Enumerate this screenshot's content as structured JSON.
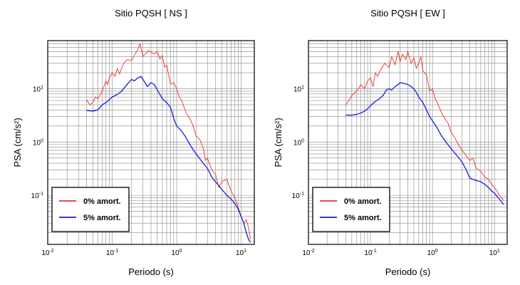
{
  "chart_data": [
    {
      "type": "line",
      "title": "Sitio PQSH [ NS ]",
      "xlabel": "Periodo (s)",
      "ylabel": "PSA (cm/s²)",
      "xscale": "log",
      "yscale": "log",
      "xlim": [
        0.01,
        16
      ],
      "ylim": [
        0.012,
        80
      ],
      "grid": true,
      "legend_position": "bottom-left",
      "xticks": [
        {
          "value": 0.01,
          "base": "10",
          "exp": "-2"
        },
        {
          "value": 0.1,
          "base": "10",
          "exp": "-1"
        },
        {
          "value": 1,
          "base": "10",
          "exp": "0"
        },
        {
          "value": 10,
          "base": "10",
          "exp": "1"
        }
      ],
      "yticks": [
        {
          "value": 0.1,
          "base": "10",
          "exp": "-1"
        },
        {
          "value": 1,
          "base": "10",
          "exp": "0"
        },
        {
          "value": 10,
          "base": "10",
          "exp": "1"
        }
      ],
      "series": [
        {
          "name": "0% amort.",
          "color": "#e8332b",
          "points": [
            [
              0.04,
              6.2
            ],
            [
              0.045,
              5.0
            ],
            [
              0.05,
              5.5
            ],
            [
              0.055,
              7.0
            ],
            [
              0.06,
              6.5
            ],
            [
              0.07,
              9.0
            ],
            [
              0.08,
              14
            ],
            [
              0.085,
              12
            ],
            [
              0.09,
              16
            ],
            [
              0.1,
              20
            ],
            [
              0.11,
              17
            ],
            [
              0.12,
              24
            ],
            [
              0.13,
              19
            ],
            [
              0.15,
              30
            ],
            [
              0.17,
              35
            ],
            [
              0.2,
              34
            ],
            [
              0.22,
              42
            ],
            [
              0.25,
              55
            ],
            [
              0.27,
              70
            ],
            [
              0.3,
              40
            ],
            [
              0.33,
              46
            ],
            [
              0.37,
              52
            ],
            [
              0.4,
              48
            ],
            [
              0.45,
              45
            ],
            [
              0.5,
              50
            ],
            [
              0.55,
              36
            ],
            [
              0.6,
              42
            ],
            [
              0.65,
              25
            ],
            [
              0.7,
              28
            ],
            [
              0.8,
              12
            ],
            [
              0.9,
              13
            ],
            [
              1.0,
              10
            ],
            [
              1.1,
              7
            ],
            [
              1.2,
              6
            ],
            [
              1.4,
              3.5
            ],
            [
              1.6,
              2.8
            ],
            [
              1.8,
              2.0
            ],
            [
              2.0,
              1.3
            ],
            [
              2.3,
              1.1
            ],
            [
              2.6,
              0.75
            ],
            [
              2.8,
              0.45
            ],
            [
              3.0,
              0.5
            ],
            [
              3.5,
              0.3
            ],
            [
              4.0,
              0.25
            ],
            [
              4.5,
              0.14
            ],
            [
              5.0,
              0.18
            ],
            [
              6.0,
              0.2
            ],
            [
              7.0,
              0.12
            ],
            [
              8.0,
              0.09
            ],
            [
              9.0,
              0.06
            ],
            [
              10,
              0.04
            ],
            [
              11,
              0.03
            ],
            [
              12,
              0.035
            ],
            [
              13,
              0.025
            ],
            [
              14,
              0.015
            ]
          ]
        },
        {
          "name": "5% amort.",
          "color": "#1a1adb",
          "points": [
            [
              0.04,
              3.9
            ],
            [
              0.05,
              3.8
            ],
            [
              0.06,
              4.0
            ],
            [
              0.07,
              5.0
            ],
            [
              0.08,
              5.5
            ],
            [
              0.09,
              6.2
            ],
            [
              0.1,
              7.0
            ],
            [
              0.12,
              7.8
            ],
            [
              0.14,
              9.0
            ],
            [
              0.16,
              11
            ],
            [
              0.18,
              13
            ],
            [
              0.2,
              15
            ],
            [
              0.22,
              14
            ],
            [
              0.25,
              16
            ],
            [
              0.28,
              17
            ],
            [
              0.3,
              15
            ],
            [
              0.35,
              11
            ],
            [
              0.4,
              13
            ],
            [
              0.45,
              12
            ],
            [
              0.5,
              9.5
            ],
            [
              0.6,
              6.5
            ],
            [
              0.7,
              5.5
            ],
            [
              0.8,
              4.5
            ],
            [
              0.9,
              2.8
            ],
            [
              1.0,
              2.0
            ],
            [
              1.2,
              1.6
            ],
            [
              1.4,
              1.2
            ],
            [
              1.7,
              0.8
            ],
            [
              2.0,
              0.6
            ],
            [
              2.5,
              0.42
            ],
            [
              3.0,
              0.32
            ],
            [
              3.5,
              0.22
            ],
            [
              4.0,
              0.18
            ],
            [
              5.0,
              0.13
            ],
            [
              6.0,
              0.1
            ],
            [
              7.0,
              0.085
            ],
            [
              8.0,
              0.07
            ],
            [
              9.0,
              0.055
            ],
            [
              10,
              0.04
            ],
            [
              11,
              0.03
            ],
            [
              12,
              0.02
            ],
            [
              13,
              0.015
            ],
            [
              14,
              0.013
            ]
          ]
        }
      ]
    },
    {
      "type": "line",
      "title": "Sitio PQSH [ EW ]",
      "xlabel": "Periodo (s)",
      "ylabel": "PSA (cm/s²)",
      "xscale": "log",
      "yscale": "log",
      "xlim": [
        0.01,
        16
      ],
      "ylim": [
        0.012,
        80
      ],
      "grid": true,
      "legend_position": "bottom-left",
      "xticks": [
        {
          "value": 0.01,
          "base": "10",
          "exp": "-2"
        },
        {
          "value": 0.1,
          "base": "10",
          "exp": "-1"
        },
        {
          "value": 1,
          "base": "10",
          "exp": "0"
        },
        {
          "value": 10,
          "base": "10",
          "exp": "1"
        }
      ],
      "yticks": [
        {
          "value": 0.1,
          "base": "10",
          "exp": "-1"
        },
        {
          "value": 1,
          "base": "10",
          "exp": "0"
        },
        {
          "value": 10,
          "base": "10",
          "exp": "1"
        }
      ],
      "series": [
        {
          "name": "0% amort.",
          "color": "#e8332b",
          "points": [
            [
              0.04,
              5.0
            ],
            [
              0.045,
              6.0
            ],
            [
              0.05,
              7.5
            ],
            [
              0.06,
              9.0
            ],
            [
              0.07,
              12
            ],
            [
              0.08,
              10
            ],
            [
              0.09,
              14
            ],
            [
              0.1,
              16
            ],
            [
              0.11,
              11
            ],
            [
              0.12,
              20
            ],
            [
              0.13,
              17
            ],
            [
              0.15,
              24
            ],
            [
              0.17,
              30
            ],
            [
              0.2,
              25
            ],
            [
              0.22,
              40
            ],
            [
              0.25,
              28
            ],
            [
              0.28,
              50
            ],
            [
              0.3,
              32
            ],
            [
              0.33,
              45
            ],
            [
              0.37,
              35
            ],
            [
              0.4,
              50
            ],
            [
              0.45,
              30
            ],
            [
              0.5,
              38
            ],
            [
              0.55,
              24
            ],
            [
              0.6,
              30
            ],
            [
              0.65,
              40
            ],
            [
              0.7,
              22
            ],
            [
              0.8,
              18
            ],
            [
              0.9,
              9
            ],
            [
              1.0,
              10
            ],
            [
              1.1,
              6.5
            ],
            [
              1.2,
              5.5
            ],
            [
              1.4,
              3.5
            ],
            [
              1.6,
              2.7
            ],
            [
              1.8,
              2.2
            ],
            [
              2.0,
              1.5
            ],
            [
              2.3,
              1.2
            ],
            [
              2.6,
              0.9
            ],
            [
              3.0,
              0.7
            ],
            [
              3.5,
              0.55
            ],
            [
              4.0,
              0.45
            ],
            [
              4.5,
              0.5
            ],
            [
              5.0,
              0.33
            ],
            [
              6.0,
              0.28
            ],
            [
              7.0,
              0.22
            ],
            [
              8.0,
              0.2
            ],
            [
              9.0,
              0.16
            ],
            [
              10,
              0.14
            ],
            [
              11,
              0.12
            ],
            [
              12,
              0.1
            ],
            [
              13,
              0.09
            ],
            [
              14,
              0.08
            ]
          ]
        },
        {
          "name": "5% amort.",
          "color": "#1a1adb",
          "points": [
            [
              0.04,
              3.2
            ],
            [
              0.05,
              3.2
            ],
            [
              0.06,
              3.3
            ],
            [
              0.07,
              3.5
            ],
            [
              0.08,
              3.8
            ],
            [
              0.09,
              4.2
            ],
            [
              0.1,
              4.8
            ],
            [
              0.12,
              5.8
            ],
            [
              0.14,
              6.5
            ],
            [
              0.16,
              7.5
            ],
            [
              0.18,
              9.5
            ],
            [
              0.2,
              10
            ],
            [
              0.22,
              9.5
            ],
            [
              0.25,
              11
            ],
            [
              0.28,
              12
            ],
            [
              0.3,
              13
            ],
            [
              0.35,
              12.5
            ],
            [
              0.4,
              12
            ],
            [
              0.45,
              11
            ],
            [
              0.5,
              10
            ],
            [
              0.55,
              8.5
            ],
            [
              0.6,
              7
            ],
            [
              0.7,
              5.5
            ],
            [
              0.8,
              4.0
            ],
            [
              0.9,
              3.0
            ],
            [
              1.0,
              2.5
            ],
            [
              1.2,
              1.8
            ],
            [
              1.4,
              1.3
            ],
            [
              1.7,
              0.95
            ],
            [
              2.0,
              0.75
            ],
            [
              2.5,
              0.55
            ],
            [
              3.0,
              0.42
            ],
            [
              3.5,
              0.3
            ],
            [
              4.0,
              0.21
            ],
            [
              4.5,
              0.2
            ],
            [
              5.0,
              0.19
            ],
            [
              6.0,
              0.18
            ],
            [
              7.0,
              0.16
            ],
            [
              8.0,
              0.14
            ],
            [
              9.0,
              0.12
            ],
            [
              10,
              0.11
            ],
            [
              11,
              0.095
            ],
            [
              12,
              0.085
            ],
            [
              13,
              0.075
            ],
            [
              14,
              0.067
            ]
          ]
        }
      ]
    }
  ]
}
